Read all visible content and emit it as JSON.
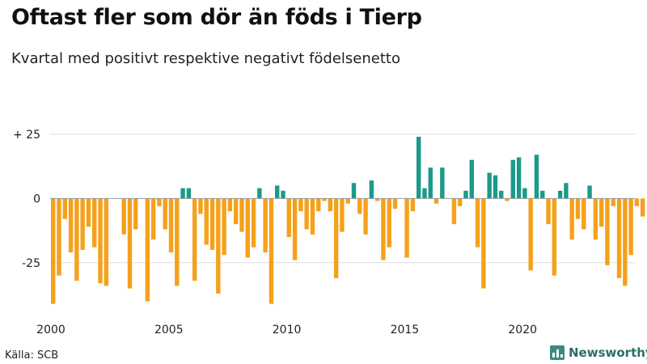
{
  "header": {
    "title": "Oftast fler som dör än föds i Tierp",
    "subtitle": "Kvartal med positivt respektive negativt födelsenetto"
  },
  "footer": {
    "source": "Källa: SCB",
    "brand": "Newsworthy"
  },
  "colors": {
    "positive": "#1a9a8a",
    "negative": "#f5a11c",
    "grid": "#dddddd",
    "zero": "#999999"
  },
  "chart_data": {
    "type": "bar",
    "title": "Oftast fler som dör än föds i Tierp",
    "subtitle": "Kvartal med positivt respektive negativt födelsenetto",
    "xlabel": "",
    "ylabel": "",
    "ylim": [
      -43,
      30
    ],
    "y_ticks": [
      {
        "value": 25,
        "label": "+ 25"
      },
      {
        "value": 0,
        "label": "0"
      },
      {
        "value": -25,
        "label": "-25"
      }
    ],
    "x_ticks": [
      {
        "value": 2000,
        "label": "2000"
      },
      {
        "value": 2005,
        "label": "2005"
      },
      {
        "value": 2010,
        "label": "2010"
      },
      {
        "value": 2015,
        "label": "2015"
      },
      {
        "value": 2020,
        "label": "2020"
      }
    ],
    "start_year": 2000,
    "quarters_per_year": 4,
    "values": [
      -41,
      -30,
      -8,
      -21,
      -32,
      -20,
      -11,
      -19,
      -33,
      -34,
      0,
      0,
      -14,
      -35,
      -12,
      0,
      -40,
      -16,
      -3,
      -12,
      -21,
      -34,
      4,
      4,
      -32,
      -6,
      -18,
      -20,
      -37,
      -22,
      -5,
      -10,
      -13,
      -23,
      -19,
      4,
      -21,
      -41,
      5,
      3,
      -15,
      -24,
      -5,
      -12,
      -14,
      -5,
      -1,
      -5,
      -31,
      -13,
      -2,
      6,
      -6,
      -14,
      7,
      -1,
      -24,
      -19,
      -4,
      0,
      -23,
      -5,
      24,
      4,
      12,
      -2,
      12,
      0,
      -10,
      -3,
      3,
      15,
      -19,
      -35,
      10,
      9,
      3,
      -1,
      15,
      16,
      4,
      -28,
      17,
      3,
      -10,
      -30,
      3,
      6,
      -16,
      -8,
      -12,
      5,
      -16,
      -11,
      -26,
      -3,
      -31,
      -34,
      -22,
      -3,
      -7
    ]
  }
}
